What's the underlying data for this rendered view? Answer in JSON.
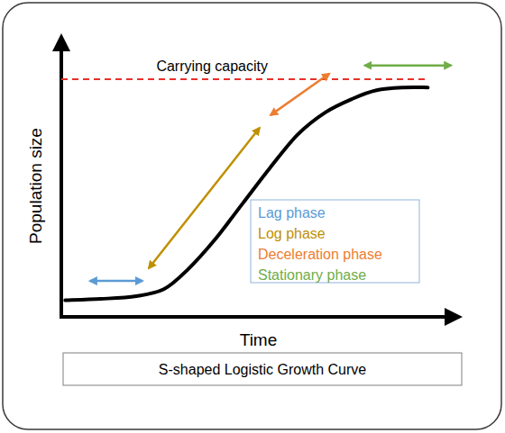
{
  "chart_data": {
    "type": "line",
    "title": "S-shaped Logistic Growth Curve",
    "x_label": "Time",
    "y_label": "Population size",
    "x": [
      1,
      10,
      19,
      26,
      32,
      39,
      46,
      53,
      60,
      67,
      74,
      80,
      87,
      93
    ],
    "values": [
      6,
      6.5,
      7.5,
      10,
      17,
      28,
      41,
      54,
      66,
      74,
      79,
      82,
      83,
      83
    ],
    "color": "#000000",
    "xlim": [
      0,
      100
    ],
    "ylim": [
      0,
      100
    ],
    "tick_labels": false,
    "annotations": [
      {
        "text": "Carrying capacity",
        "y": 86,
        "x": [
          0,
          93
        ],
        "color": "#e8302a",
        "line_style": "dashed"
      }
    ],
    "phases": [
      {
        "name": "Lag phase",
        "color": "#5b9bd5",
        "x": [
          7.3,
          20.6
        ],
        "y": [
          13,
          13
        ]
      },
      {
        "name": "Log phase",
        "color": "#bf9000",
        "x": [
          22.2,
          50.3
        ],
        "y": [
          17.6,
          68.4
        ]
      },
      {
        "name": "Deceleration phase",
        "color": "#ed7d31",
        "x": [
          53.1,
          68
        ],
        "y": [
          73,
          88
        ]
      },
      {
        "name": "Stationary phase",
        "color": "#70ad47",
        "x": [
          77,
          98.9
        ],
        "y": [
          91,
          91
        ]
      }
    ]
  }
}
